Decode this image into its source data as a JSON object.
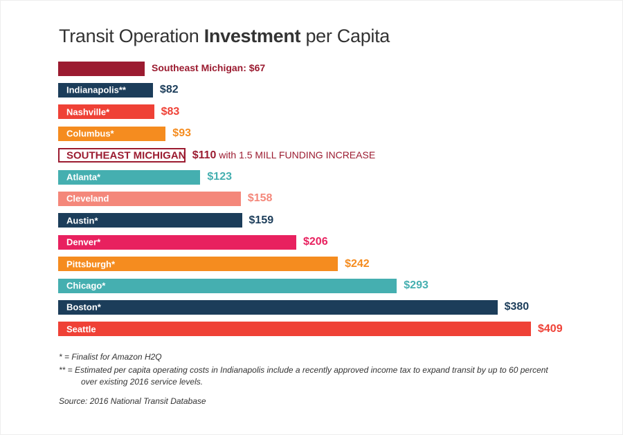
{
  "chart_data": {
    "type": "bar",
    "orientation": "horizontal",
    "title_parts": [
      "Transit Operation ",
      "Investment",
      " per Capita"
    ],
    "currency": "$",
    "bars": [
      {
        "category": "Southeast Michigan",
        "value": 67,
        "color": "#9b1b30",
        "label": "",
        "value_label": "Southeast Michigan: $67"
      },
      {
        "category": "Indianapolis**",
        "value": 82,
        "color": "#1c3d5a",
        "label": "Indianapolis**",
        "value_label": "$82"
      },
      {
        "category": "Nashville*",
        "value": 83,
        "color": "#ef4136",
        "label": "Nashville*",
        "value_label": "$83"
      },
      {
        "category": "Columbus*",
        "value": 93,
        "color": "#f58c1f",
        "label": "Columbus*",
        "value_label": "$93"
      },
      {
        "category": "SOUTHEAST MICHIGAN",
        "value": 110,
        "color": "#9b1b30",
        "outline": true,
        "label": "SOUTHEAST MICHIGAN",
        "value_label": "$110",
        "note": " with 1.5 MILL FUNDING INCREASE"
      },
      {
        "category": "Atlanta*",
        "value": 123,
        "color": "#45afb0",
        "label": "Atlanta*",
        "value_label": "$123"
      },
      {
        "category": "Cleveland",
        "value": 158,
        "color": "#f4877a",
        "label": "Cleveland",
        "value_label": "$158"
      },
      {
        "category": "Austin*",
        "value": 159,
        "color": "#1c3d5a",
        "label": "Austin*",
        "value_label": "$159"
      },
      {
        "category": "Denver*",
        "value": 206,
        "color": "#e8215f",
        "label": "Denver*",
        "value_label": "$206"
      },
      {
        "category": "Pittsburgh*",
        "value": 242,
        "color": "#f58c1f",
        "label": "Pittsburgh*",
        "value_label": "$242"
      },
      {
        "category": "Chicago*",
        "value": 293,
        "color": "#45afb0",
        "label": "Chicago*",
        "value_label": "$293"
      },
      {
        "category": "Boston*",
        "value": 380,
        "color": "#1c3d5a",
        "label": "Boston*",
        "value_label": "$380"
      },
      {
        "category": "Seattle",
        "value": 409,
        "color": "#ef4136",
        "label": "Seattle",
        "value_label": "$409"
      }
    ],
    "grid": false,
    "legend": "none"
  },
  "footnotes": {
    "single": "* = Finalist for Amazon H2Q",
    "double_1": "** =  Estimated per capita operating costs in Indianapolis include a recently approved income tax to expand transit by up to 60 percent",
    "double_2": "over existing 2016 service levels.",
    "source": "Source: 2016 National Transit Database"
  }
}
